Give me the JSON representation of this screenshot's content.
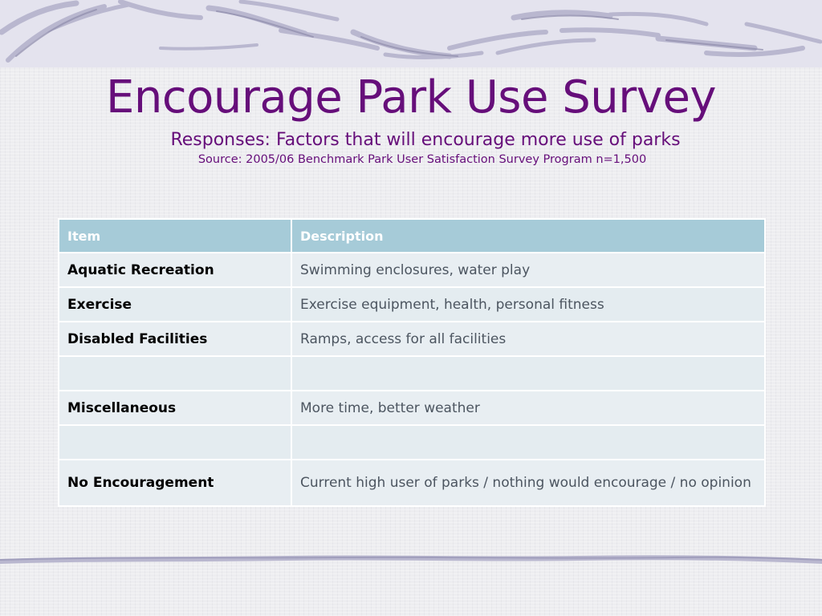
{
  "slide": {
    "title": "Encourage Park Use Survey",
    "subtitle": "Responses: Factors that will encourage more use of parks",
    "source": "Source: 2005/06 Benchmark Park User Satisfaction Survey Program  n=1,500"
  },
  "table": {
    "headers": [
      "Item",
      "Description"
    ],
    "rows": [
      {
        "item": "Aquatic Recreation",
        "description": "Swimming enclosures, water play"
      },
      {
        "item": "Exercise",
        "description": "Exercise equipment, health, personal fitness"
      },
      {
        "item": "Disabled Facilities",
        "description": "Ramps, access for all facilities"
      },
      {
        "item": "",
        "description": ""
      },
      {
        "item": "Miscellaneous",
        "description": "More time, better weather"
      },
      {
        "item": "",
        "description": ""
      },
      {
        "item": "No Encouragement",
        "description": "Current high user of parks / nothing would encourage / no opinion"
      }
    ]
  },
  "colors": {
    "title": "#660e7a",
    "header_bg": "#a6cbd8",
    "cell_bg": "#e8eef2",
    "background": "#ededf0"
  }
}
